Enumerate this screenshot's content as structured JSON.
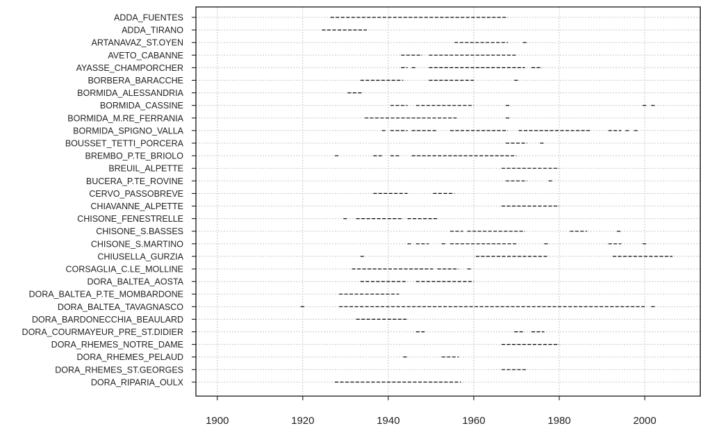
{
  "chart_data": {
    "type": "timeline",
    "xlim": [
      1895,
      2013
    ],
    "x_ticks": [
      1900,
      1920,
      1940,
      1960,
      1980,
      2000
    ],
    "x_tick_labels": [
      "1900",
      "1920",
      "1940",
      "1960",
      "1980",
      "2000"
    ],
    "grid": true,
    "colors": {
      "line": "#000000",
      "grid": "#c8c8c8",
      "frame": "#000000"
    },
    "stations": [
      {
        "name": "ADDA_FUENTES",
        "segments": [
          [
            1926.5,
            1968
          ]
        ]
      },
      {
        "name": "ADDA_TIRANO",
        "segments": [
          [
            1924.5,
            1935
          ]
        ]
      },
      {
        "name": "ARTANAVAZ_ST.OYEN",
        "segments": [
          [
            1955.5,
            1968
          ],
          [
            1971.5,
            1972.5
          ]
        ]
      },
      {
        "name": "AVETO_CABANNE",
        "segments": [
          [
            1943,
            1948
          ],
          [
            1949.5,
            1970
          ]
        ]
      },
      {
        "name": "AYASSE_CHAMPORCHER",
        "segments": [
          [
            1943,
            1944.5
          ],
          [
            1945.5,
            1946.5
          ],
          [
            1949.5,
            1972
          ],
          [
            1973.5,
            1976
          ]
        ]
      },
      {
        "name": "BORBERA_BARACCHE",
        "segments": [
          [
            1933.5,
            1943.5
          ],
          [
            1949.5,
            1960
          ],
          [
            1969.5,
            1970.5
          ]
        ]
      },
      {
        "name": "BORMIDA_ALESSANDRIA",
        "segments": [
          [
            1930.5,
            1934
          ]
        ]
      },
      {
        "name": "BORMIDA_CASSINE",
        "segments": [
          [
            1940.5,
            1944.5
          ],
          [
            1946.5,
            1960
          ],
          [
            1967.5,
            1968.5
          ],
          [
            1999.5,
            2000.5
          ],
          [
            2001.5,
            2002.5
          ]
        ]
      },
      {
        "name": "BORMIDA_M.RE_FERRANIA",
        "segments": [
          [
            1934.5,
            1956
          ],
          [
            1967.5,
            1968.5
          ]
        ]
      },
      {
        "name": "BORMIDA_SPIGNO_VALLA",
        "segments": [
          [
            1938.5,
            1939.5
          ],
          [
            1940.5,
            1944.5
          ],
          [
            1945.5,
            1951.5
          ],
          [
            1954.5,
            1968
          ],
          [
            1970.5,
            1987.5
          ],
          [
            1991.5,
            1994.5
          ],
          [
            1995.5,
            1996.5
          ],
          [
            1997.5,
            1998.5
          ]
        ]
      },
      {
        "name": "BOUSSET_TETTI_PORCERA",
        "segments": [
          [
            1967.5,
            1972.5
          ],
          [
            1975.5,
            1976.5
          ]
        ]
      },
      {
        "name": "BREMBO_P.TE_BRIOLO",
        "segments": [
          [
            1927.5,
            1928.5
          ],
          [
            1936.5,
            1938.5
          ],
          [
            1940.5,
            1942.5
          ],
          [
            1945.5,
            1970
          ]
        ]
      },
      {
        "name": "BREUIL_ALPETTE",
        "segments": [
          [
            1966.5,
            1980
          ]
        ]
      },
      {
        "name": "BUCERA_P.TE_ROVINE",
        "segments": [
          [
            1967.5,
            1972.5
          ],
          [
            1977.5,
            1978.5
          ]
        ]
      },
      {
        "name": "CERVO_PASSOBREVE",
        "segments": [
          [
            1936.5,
            1944.5
          ],
          [
            1950.5,
            1955.5
          ]
        ]
      },
      {
        "name": "CHIAVANNE_ALPETTE",
        "segments": [
          [
            1966.5,
            1980
          ]
        ]
      },
      {
        "name": "CHISONE_FENESTRELLE",
        "segments": [
          [
            1929.5,
            1930.5
          ],
          [
            1932.5,
            1943.5
          ],
          [
            1944.5,
            1951.5
          ]
        ]
      },
      {
        "name": "CHISONE_S.BASSES",
        "segments": [
          [
            1954.5,
            1957.5
          ],
          [
            1958.5,
            1972
          ],
          [
            1982.5,
            1986.5
          ],
          [
            1993.5,
            1994.5
          ]
        ]
      },
      {
        "name": "CHISONE_S.MARTINO",
        "segments": [
          [
            1944.5,
            1945.5
          ],
          [
            1946.5,
            1949.5
          ],
          [
            1952.5,
            1953.5
          ],
          [
            1954.5,
            1970
          ],
          [
            1976.5,
            1977.5
          ],
          [
            1991.5,
            1994.5
          ],
          [
            1999.5,
            2000.5
          ]
        ]
      },
      {
        "name": "CHIUSELLA_GURZIA",
        "segments": [
          [
            1933.5,
            1934.5
          ],
          [
            1960.5,
            1977.5
          ],
          [
            1992.5,
            2006.5
          ]
        ]
      },
      {
        "name": "CORSAGLIA_C.LE_MOLLINE",
        "segments": [
          [
            1931.5,
            1950.5
          ],
          [
            1951.5,
            1956.5
          ],
          [
            1958.5,
            1959.5
          ]
        ]
      },
      {
        "name": "DORA_BALTEA_AOSTA",
        "segments": [
          [
            1933.5,
            1944.5
          ],
          [
            1946.5,
            1960
          ]
        ]
      },
      {
        "name": "DORA_BALTEA_P.TE_MOMBARDONE",
        "segments": [
          [
            1928.5,
            1942.5
          ]
        ]
      },
      {
        "name": "DORA_BALTEA_TAVAGNASCO",
        "segments": [
          [
            1919.5,
            1920.5
          ],
          [
            1928.5,
            2000
          ],
          [
            2001.5,
            2002.5
          ]
        ]
      },
      {
        "name": "DORA_BARDONECCHIA_BEAULARD",
        "segments": [
          [
            1932.5,
            1944.5
          ]
        ]
      },
      {
        "name": "DORA_COURMAYEUR_PRE_ST.DIDIER",
        "segments": [
          [
            1946.5,
            1948.5
          ],
          [
            1969.5,
            1971.5
          ],
          [
            1973.5,
            1976.5
          ]
        ]
      },
      {
        "name": "DORA_RHEMES_NOTRE_DAME",
        "segments": [
          [
            1966.5,
            1980
          ]
        ]
      },
      {
        "name": "DORA_RHEMES_PELAUD",
        "segments": [
          [
            1943.5,
            1944.5
          ],
          [
            1952.5,
            1956.5
          ]
        ]
      },
      {
        "name": "DORA_RHEMES_ST.GEORGES",
        "segments": [
          [
            1966.5,
            1972.5
          ]
        ]
      },
      {
        "name": "DORA_RIPARIA_OULX",
        "segments": [
          [
            1927.5,
            1957
          ]
        ]
      }
    ]
  }
}
